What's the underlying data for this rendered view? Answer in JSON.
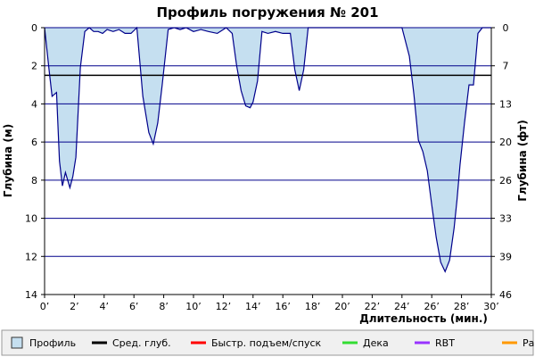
{
  "chart_data": {
    "type": "area",
    "title": "Профиль погружения № 201",
    "xlabel": "Длительность (мин.)",
    "ylabel_left": "Глубина (м)",
    "ylabel_right": "Глубина (фт)",
    "x_range": [
      0,
      30
    ],
    "y_range_m": [
      0,
      14
    ],
    "x_ticks": [
      "0’",
      "2’",
      "4’",
      "6’",
      "8’",
      "10’",
      "12’",
      "14’",
      "16’",
      "18’",
      "20’",
      "22’",
      "24’",
      "26’",
      "28’",
      "30’"
    ],
    "y_ticks_left": [
      "0",
      "2",
      "4",
      "6",
      "8",
      "10",
      "12",
      "14"
    ],
    "y_ticks_right": [
      "0",
      "7",
      "13",
      "20",
      "26",
      "33",
      "39",
      "46"
    ],
    "grid": "horizontal",
    "average_depth_m": 2.5,
    "series": [
      {
        "name": "Профиль",
        "x": [
          0.0,
          0.3,
          0.5,
          0.8,
          1.0,
          1.2,
          1.4,
          1.7,
          1.9,
          2.1,
          2.4,
          2.7,
          3.0,
          3.3,
          3.6,
          3.9,
          4.2,
          4.6,
          5.0,
          5.4,
          5.8,
          6.2,
          6.6,
          7.0,
          7.3,
          7.6,
          7.9,
          8.3,
          8.7,
          9.1,
          9.5,
          10.0,
          10.5,
          11.0,
          11.6,
          12.2,
          12.6,
          12.9,
          13.2,
          13.5,
          13.8,
          14.0,
          14.3,
          14.6,
          15.0,
          15.5,
          16.0,
          16.5,
          16.8,
          17.1,
          17.4,
          17.7,
          18.0,
          18.5,
          19.5,
          21.0,
          22.5,
          24.0,
          24.5,
          24.8,
          25.1,
          25.4,
          25.7,
          26.0,
          26.3,
          26.6,
          26.9,
          27.2,
          27.5,
          27.7,
          27.9,
          28.2,
          28.5,
          28.8,
          29.1,
          29.4,
          29.7,
          30.0
        ],
        "y": [
          0.0,
          2.2,
          3.6,
          3.4,
          7.0,
          8.3,
          7.6,
          8.4,
          7.8,
          6.8,
          2.1,
          0.2,
          0.0,
          0.2,
          0.2,
          0.3,
          0.1,
          0.2,
          0.1,
          0.3,
          0.3,
          0.0,
          3.6,
          5.5,
          6.1,
          5.0,
          3.0,
          0.1,
          0.0,
          0.1,
          0.0,
          0.2,
          0.1,
          0.2,
          0.3,
          0.0,
          0.3,
          2.0,
          3.3,
          4.1,
          4.2,
          3.9,
          2.8,
          0.2,
          0.3,
          0.2,
          0.3,
          0.3,
          2.2,
          3.3,
          2.2,
          0.0,
          0.0,
          0.0,
          0.0,
          0.0,
          0.0,
          0.0,
          1.5,
          3.5,
          5.9,
          6.5,
          7.5,
          9.3,
          11.0,
          12.3,
          12.8,
          12.2,
          10.5,
          9.0,
          7.2,
          5.0,
          3.0,
          3.0,
          0.3,
          0.0,
          0.0,
          0.0
        ]
      }
    ],
    "legend": {
      "placement": "bottom",
      "items": [
        {
          "label": "Профиль",
          "color": "#c5dff0",
          "kind": "box"
        },
        {
          "label": "Сред. глуб.",
          "color": "#000000",
          "kind": "line"
        },
        {
          "label": "Быстр. подъем/спуск",
          "color": "#ff0000",
          "kind": "line"
        },
        {
          "label": "Дека",
          "color": "#33dd33",
          "kind": "line"
        },
        {
          "label": "RBT",
          "color": "#9933ff",
          "kind": "line"
        },
        {
          "label": "Раб.",
          "color": "#ff9900",
          "kind": "line"
        }
      ]
    },
    "colors": {
      "area_fill": "#c5dff0",
      "area_stroke": "#00008b",
      "grid": "#00008b",
      "average_line": "#000000",
      "legend_bg": "#f0f0f0"
    }
  }
}
